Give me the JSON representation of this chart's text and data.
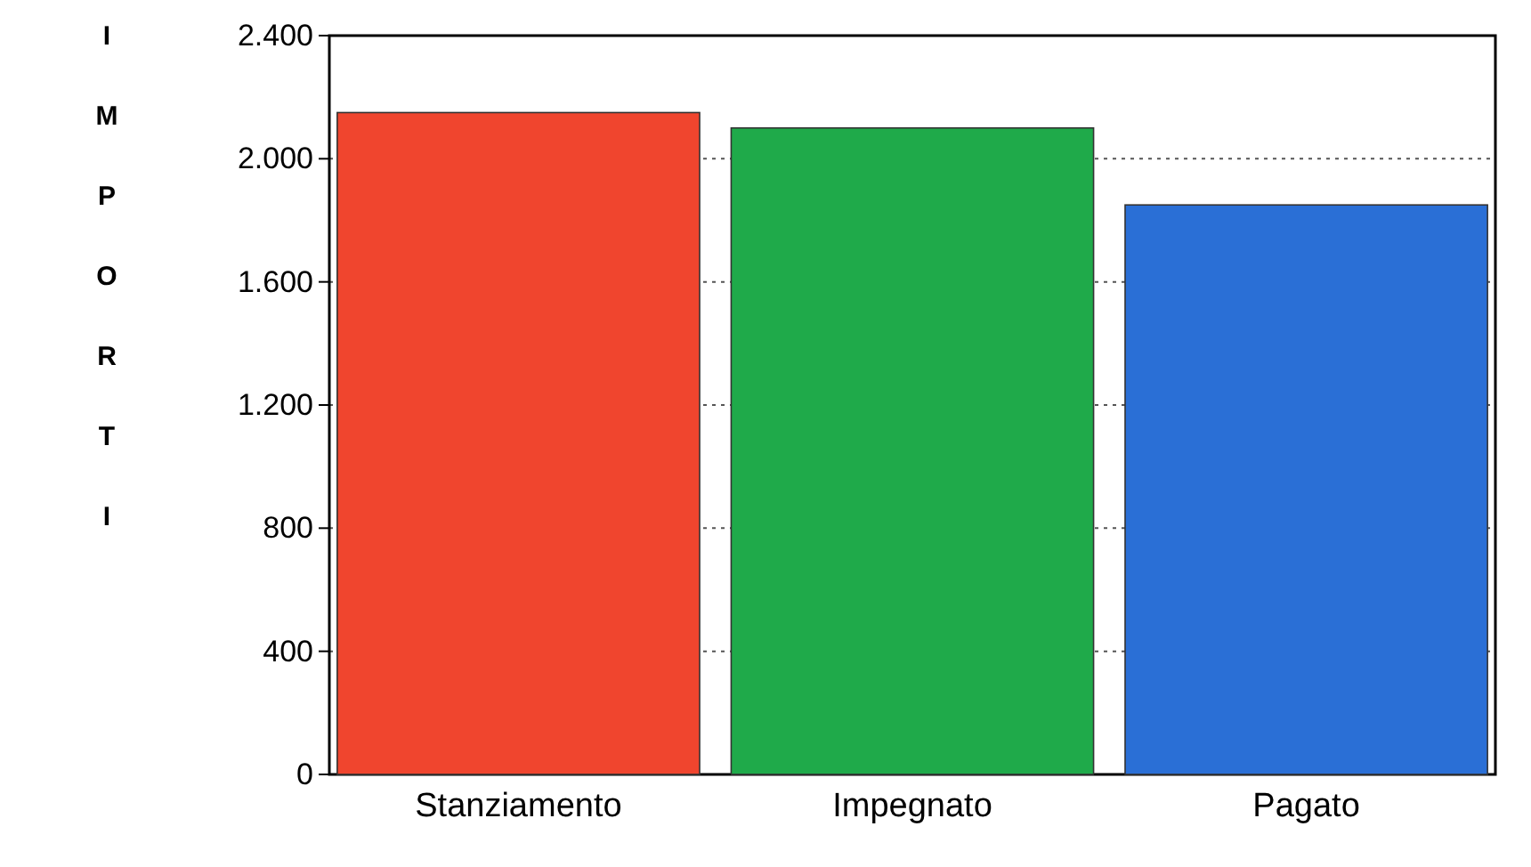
{
  "chart_data": {
    "type": "bar",
    "ylabel": "IMPORTI",
    "categories": [
      "Stanziamento",
      "Impegnato",
      "Pagato"
    ],
    "values": [
      2150,
      2100,
      1850
    ],
    "colors": [
      "#f0452e",
      "#1faa4a",
      "#2a6fd6"
    ],
    "ylim": [
      0,
      2400
    ],
    "yticks": [
      {
        "value": 0,
        "label": "0"
      },
      {
        "value": 400,
        "label": "400"
      },
      {
        "value": 800,
        "label": "800"
      },
      {
        "value": 1200,
        "label": "1.200"
      },
      {
        "value": 1600,
        "label": "1.600"
      },
      {
        "value": 2000,
        "label": "2.000"
      },
      {
        "value": 2400,
        "label": "2.400"
      }
    ],
    "grid": "y"
  }
}
